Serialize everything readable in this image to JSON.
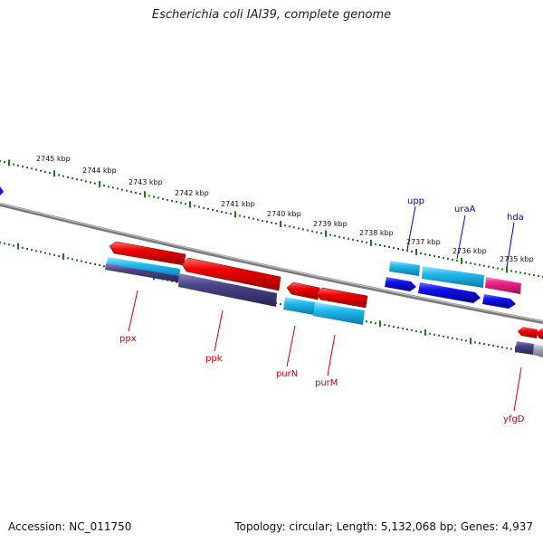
{
  "title": "Escherichia coli IAI39, complete genome",
  "footer": {
    "accession": "Accession: NC_011750",
    "stats": "Topology: circular; Length: 5,132,068 bp; Genes: 4,937"
  },
  "scale_labels": [
    "2745 kbp",
    "2744 kbp",
    "2743 kbp",
    "2742 kbp",
    "2741 kbp",
    "2740 kbp",
    "2739 kbp",
    "2738 kbp",
    "2737 kbp",
    "2736 kbp",
    "2735 kbp"
  ],
  "gene_labels": {
    "upp": "upp",
    "uraA": "uraA",
    "hda": "hda",
    "ppx": "ppx",
    "ppk": "ppk",
    "purN": "purN",
    "purM": "purM",
    "yfgD": "yfgD"
  },
  "colors": {
    "forward_label": "#0000cc",
    "reverse_label": "#cc0000",
    "red_gene": "#ee0000",
    "cyan_gene": "#22bbee",
    "blue_gene": "#1111ee",
    "navy_gene": "#4a4488",
    "pink_gene": "#ee2288",
    "gray_gene": "#a8a8b8",
    "tick_green": "#1a7a1a",
    "backbone": "#7a7a7a"
  }
}
